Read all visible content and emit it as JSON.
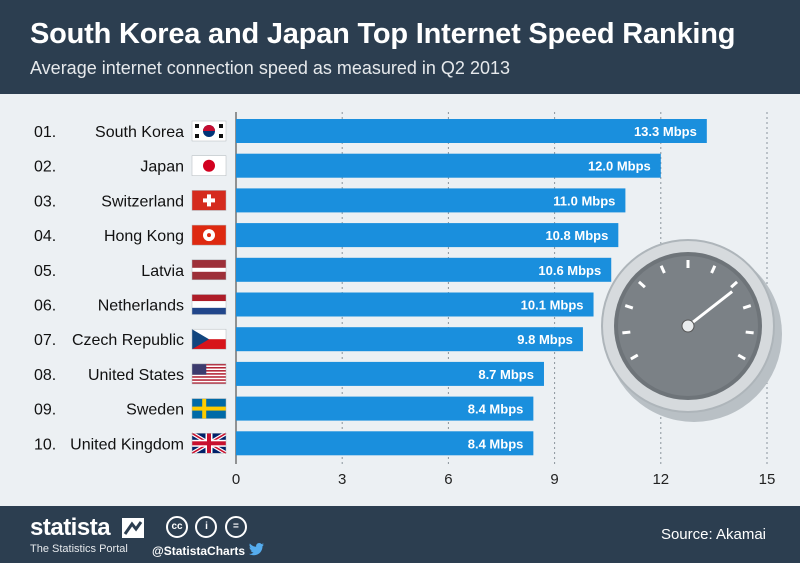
{
  "header": {
    "title": "South Korea and Japan Top Internet Speed Ranking",
    "subtitle": "Average internet connection speed as measured in Q2 2013"
  },
  "colors": {
    "header_bg": "#2c3e50",
    "chart_bg": "#ecf0f3",
    "bar": "#1a8fdd",
    "grid": "#8a949c"
  },
  "chart_data": {
    "type": "bar",
    "orientation": "horizontal",
    "title": "South Korea and Japan Top Internet Speed Ranking",
    "subtitle": "Average internet connection speed as measured in Q2 2013",
    "xlabel": "",
    "ylabel": "",
    "xlim": [
      0,
      15
    ],
    "xticks": [
      "0",
      "3",
      "6",
      "9",
      "12",
      "15"
    ],
    "grid": "vertical dotted",
    "ranks": [
      "01.",
      "02.",
      "03.",
      "04.",
      "05.",
      "06.",
      "07.",
      "08.",
      "09.",
      "10."
    ],
    "categories": [
      "South Korea",
      "Japan",
      "Switzerland",
      "Hong Kong",
      "Latvia",
      "Netherlands",
      "Czech Republic",
      "United States",
      "Sweden",
      "United Kingdom"
    ],
    "flags": [
      "south-korea-flag",
      "japan-flag",
      "switzerland-flag",
      "hong-kong-flag",
      "latvia-flag",
      "netherlands-flag",
      "czech-republic-flag",
      "united-states-flag",
      "sweden-flag",
      "united-kingdom-flag"
    ],
    "values": [
      13.3,
      12.0,
      11.0,
      10.8,
      10.6,
      10.1,
      9.8,
      8.7,
      8.4,
      8.4
    ],
    "value_labels": [
      "13.3 Mbps",
      "12.0 Mbps",
      "11.0 Mbps",
      "10.8 Mbps",
      "10.6 Mbps",
      "10.1 Mbps",
      "9.8 Mbps",
      "8.7 Mbps",
      "8.4 Mbps",
      "8.4 Mbps"
    ]
  },
  "footer": {
    "brand": "statista",
    "tagline": "The Statistics Portal",
    "handle": "@StatistaCharts",
    "source": "Source: Akamai",
    "license_icons": [
      "cc",
      "i",
      "="
    ]
  }
}
